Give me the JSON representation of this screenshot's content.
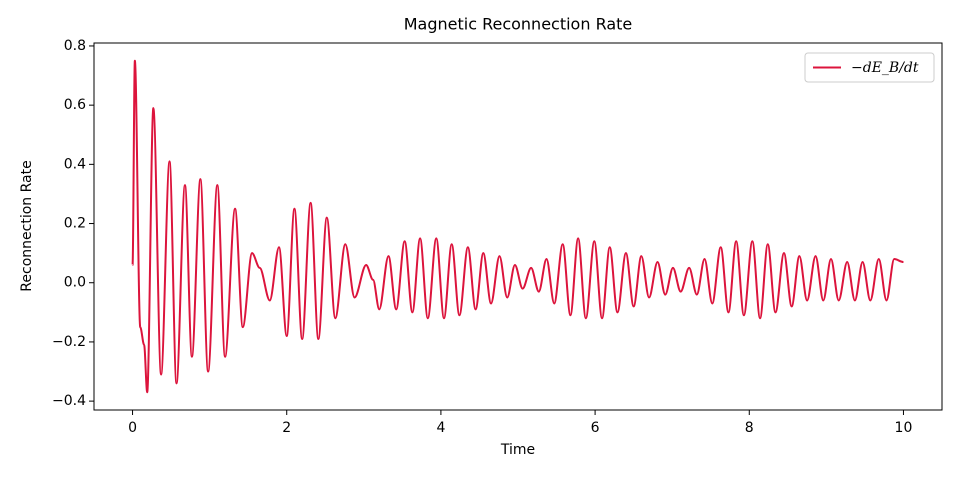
{
  "chart_data": {
    "type": "line",
    "title": "Magnetic Reconnection Rate",
    "xlabel": "Time",
    "ylabel": "Reconnection Rate",
    "x": [
      0,
      0.03,
      0.1,
      0.15,
      0.19,
      0.27,
      0.37,
      0.48,
      0.57,
      0.68,
      0.77,
      0.88,
      0.98,
      1.1,
      1.2,
      1.33,
      1.43,
      1.55,
      1.65,
      1.78,
      1.9,
      2.0,
      2.1,
      2.2,
      2.31,
      2.41,
      2.52,
      2.63,
      2.76,
      2.88,
      3.03,
      3.12,
      3.2,
      3.32,
      3.42,
      3.53,
      3.63,
      3.73,
      3.83,
      3.94,
      4.04,
      4.14,
      4.24,
      4.35,
      4.45,
      4.55,
      4.65,
      4.76,
      4.86,
      4.96,
      5.06,
      5.17,
      5.27,
      5.37,
      5.47,
      5.58,
      5.68,
      5.78,
      5.88,
      5.99,
      6.09,
      6.19,
      6.29,
      6.4,
      6.5,
      6.6,
      6.7,
      6.81,
      6.91,
      7.01,
      7.11,
      7.22,
      7.32,
      7.42,
      7.52,
      7.63,
      7.73,
      7.83,
      7.93,
      8.04,
      8.14,
      8.24,
      8.34,
      8.45,
      8.55,
      8.65,
      8.75,
      8.86,
      8.96,
      9.06,
      9.16,
      9.27,
      9.37,
      9.47,
      9.57,
      9.68,
      9.78,
      9.88,
      10.0
    ],
    "series": [
      {
        "name": "−dE_B/dt",
        "color": "#dc143c",
        "values": [
          0.06,
          0.75,
          -0.15,
          -0.21,
          -0.37,
          0.59,
          -0.31,
          0.41,
          -0.34,
          0.33,
          -0.25,
          0.35,
          -0.3,
          0.33,
          -0.25,
          0.25,
          -0.15,
          0.1,
          0.05,
          -0.06,
          0.12,
          -0.18,
          0.25,
          -0.19,
          0.27,
          -0.19,
          0.22,
          -0.12,
          0.13,
          -0.05,
          0.06,
          0.01,
          -0.09,
          0.09,
          -0.09,
          0.14,
          -0.1,
          0.15,
          -0.12,
          0.15,
          -0.12,
          0.13,
          -0.11,
          0.12,
          -0.09,
          0.1,
          -0.07,
          0.09,
          -0.05,
          0.06,
          -0.02,
          0.05,
          -0.03,
          0.08,
          -0.07,
          0.13,
          -0.11,
          0.15,
          -0.12,
          0.14,
          -0.12,
          0.12,
          -0.1,
          0.1,
          -0.08,
          0.09,
          -0.05,
          0.07,
          -0.04,
          0.05,
          -0.03,
          0.05,
          -0.04,
          0.08,
          -0.07,
          0.12,
          -0.1,
          0.14,
          -0.11,
          0.14,
          -0.12,
          0.13,
          -0.1,
          0.1,
          -0.08,
          0.09,
          -0.06,
          0.09,
          -0.06,
          0.08,
          -0.06,
          0.07,
          -0.06,
          0.07,
          -0.06,
          0.08,
          -0.06,
          0.08,
          0.07
        ]
      }
    ],
    "xlim": [
      -0.5,
      10.5
    ],
    "ylim": [
      -0.43,
      0.81
    ],
    "xticks": [
      0,
      2,
      4,
      6,
      8,
      10
    ],
    "yticks": [
      {
        "value": -0.4,
        "label": "−0.4"
      },
      {
        "value": -0.2,
        "label": "−0.2"
      },
      {
        "value": 0,
        "label": "0.0"
      },
      0.2,
      0.4,
      0.6,
      0.8
    ],
    "legend": "upper right"
  }
}
